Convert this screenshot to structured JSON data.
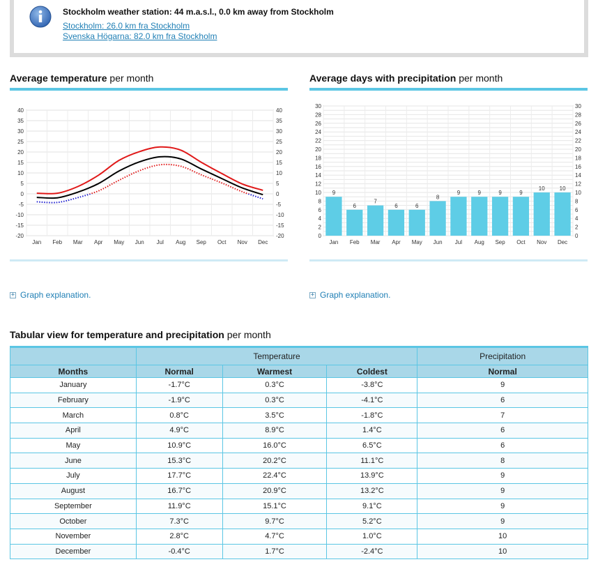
{
  "station": {
    "title": "Stockholm weather station: 44 m.a.s.l., 0.0 km away from Stockholm",
    "links": [
      "Stockholm: 26.0 km fra Stockholm",
      "Svenska Högarna: 82.0 km fra Stockholm"
    ],
    "icon": "info-icon"
  },
  "temp_section": {
    "title_bold": "Average temperature",
    "title_rest": " per month"
  },
  "precip_section": {
    "title_bold": "Average days with precipitation",
    "title_rest": " per month"
  },
  "graph_explanation": "Graph explanation.",
  "table_section": {
    "title_bold": "Tabular view for temperature and precipitation",
    "title_rest": " per month"
  },
  "table": {
    "group_headers": {
      "temperature": "Temperature",
      "precipitation": "Precipitation"
    },
    "columns": {
      "months": "Months",
      "normal": "Normal",
      "warmest": "Warmest",
      "coldest": "Coldest",
      "precip_normal": "Normal"
    },
    "rows": [
      {
        "month": "January",
        "normal": "-1.7°C",
        "warmest": "0.3°C",
        "coldest": "-3.8°C",
        "precip": "9"
      },
      {
        "month": "February",
        "normal": "-1.9°C",
        "warmest": "0.3°C",
        "coldest": "-4.1°C",
        "precip": "6"
      },
      {
        "month": "March",
        "normal": "0.8°C",
        "warmest": "3.5°C",
        "coldest": "-1.8°C",
        "precip": "7"
      },
      {
        "month": "April",
        "normal": "4.9°C",
        "warmest": "8.9°C",
        "coldest": "1.4°C",
        "precip": "6"
      },
      {
        "month": "May",
        "normal": "10.9°C",
        "warmest": "16.0°C",
        "coldest": "6.5°C",
        "precip": "6"
      },
      {
        "month": "June",
        "normal": "15.3°C",
        "warmest": "20.2°C",
        "coldest": "11.1°C",
        "precip": "8"
      },
      {
        "month": "July",
        "normal": "17.7°C",
        "warmest": "22.4°C",
        "coldest": "13.9°C",
        "precip": "9"
      },
      {
        "month": "August",
        "normal": "16.7°C",
        "warmest": "20.9°C",
        "coldest": "13.2°C",
        "precip": "9"
      },
      {
        "month": "September",
        "normal": "11.9°C",
        "warmest": "15.1°C",
        "coldest": "9.1°C",
        "precip": "9"
      },
      {
        "month": "October",
        "normal": "7.3°C",
        "warmest": "9.7°C",
        "coldest": "5.2°C",
        "precip": "9"
      },
      {
        "month": "November",
        "normal": "2.8°C",
        "warmest": "4.7°C",
        "coldest": "1.0°C",
        "precip": "10"
      },
      {
        "month": "December",
        "normal": "-0.4°C",
        "warmest": "1.7°C",
        "coldest": "-2.4°C",
        "precip": "10"
      }
    ]
  },
  "chart_data": [
    {
      "type": "line",
      "categories": [
        "Jan",
        "Feb",
        "Mar",
        "Apr",
        "May",
        "Jun",
        "Jul",
        "Aug",
        "Sep",
        "Oct",
        "Nov",
        "Dec"
      ],
      "series": [
        {
          "values": [
            0.3,
            0.3,
            3.5,
            8.9,
            16.0,
            20.2,
            22.4,
            20.9,
            15.1,
            9.7,
            4.7,
            1.7
          ],
          "color": "#e01818"
        },
        {
          "values": [
            -1.7,
            -1.9,
            0.8,
            4.9,
            10.9,
            15.3,
            17.7,
            16.7,
            11.9,
            7.3,
            2.8,
            -0.4
          ],
          "color": "#000000"
        },
        {
          "values": [
            -3.8,
            -4.1,
            -1.8,
            1.4,
            6.5,
            11.1,
            13.9,
            13.2,
            9.1,
            5.2,
            1.0,
            -2.4
          ],
          "color": "#e01818",
          "low_color": "#1a1ad0",
          "style": "dotted"
        }
      ],
      "ylim": [
        -20,
        40
      ],
      "yticks": [
        -20,
        -15,
        -10,
        -5,
        0,
        5,
        10,
        15,
        20,
        25,
        30,
        35,
        40
      ],
      "grid": true
    },
    {
      "type": "bar",
      "categories": [
        "Jan",
        "Feb",
        "Mar",
        "Apr",
        "May",
        "Jun",
        "Jul",
        "Aug",
        "Sep",
        "Oct",
        "Nov",
        "Dec"
      ],
      "values": [
        9,
        6,
        7,
        6,
        6,
        8,
        9,
        9,
        9,
        9,
        10,
        10
      ],
      "ylim": [
        0,
        30
      ],
      "yticks": [
        0,
        2,
        4,
        6,
        8,
        10,
        12,
        14,
        16,
        18,
        20,
        22,
        24,
        26,
        28,
        30
      ],
      "bar_color": "#5ecde6",
      "grid": true
    }
  ]
}
